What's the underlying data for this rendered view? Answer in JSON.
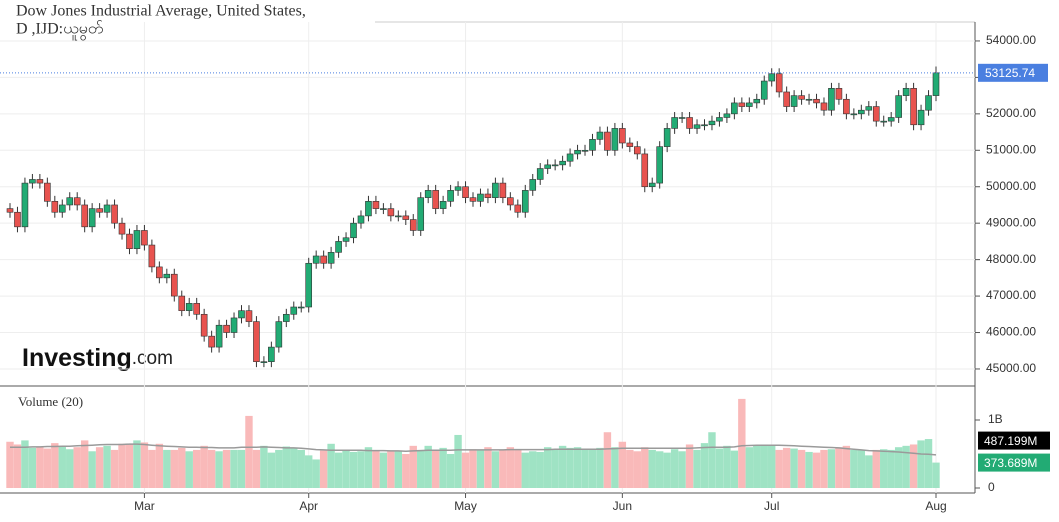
{
  "chart_data": {
    "type": "candlestick",
    "title": "Dow Jones Industrial Average, United States,",
    "subtitle": "D ,IJD:ယူမွတ်",
    "logo": {
      "brand": "Investing",
      "suffix": ".com"
    },
    "up_color": "#22ab74",
    "down_color": "#e8534f",
    "last_price_color": "#4a7fe0",
    "grid": true,
    "categories": [
      null,
      null,
      null,
      null,
      null,
      null,
      null,
      null,
      null,
      null,
      null,
      null,
      null,
      null,
      null,
      null,
      null,
      null,
      "Mar",
      null,
      null,
      null,
      null,
      null,
      null,
      null,
      null,
      null,
      null,
      null,
      null,
      null,
      null,
      null,
      null,
      null,
      null,
      null,
      null,
      null,
      "Apr",
      null,
      null,
      null,
      null,
      null,
      null,
      null,
      null,
      null,
      null,
      null,
      null,
      null,
      null,
      null,
      null,
      null,
      null,
      null,
      null,
      "May",
      null,
      null,
      null,
      null,
      null,
      null,
      null,
      null,
      null,
      null,
      null,
      null,
      null,
      null,
      null,
      null,
      null,
      null,
      null,
      null,
      "Jun",
      null,
      null,
      null,
      null,
      null,
      null,
      null,
      null,
      null,
      null,
      null,
      null,
      null,
      null,
      null,
      null,
      null,
      null,
      null,
      "Jul",
      null,
      null,
      null,
      null,
      null,
      null,
      null,
      null,
      null,
      null,
      null,
      null,
      null,
      null,
      null,
      null,
      null,
      null,
      null,
      null,
      null,
      "Aug"
    ],
    "open": [
      49400,
      49300,
      48900,
      50100,
      50200,
      50100,
      49600,
      49300,
      49500,
      49700,
      49500,
      48900,
      49400,
      49300,
      49500,
      49000,
      48700,
      48300,
      48800,
      48400,
      47800,
      47500,
      47600,
      47000,
      46600,
      46800,
      46500,
      45900,
      45600,
      46200,
      46000,
      46400,
      46600,
      46300,
      45200,
      45200,
      45600,
      46300,
      46500,
      46700,
      46700,
      47900,
      48100,
      47900,
      48200,
      48500,
      48600,
      49000,
      49200,
      49600,
      49400,
      49400,
      49200,
      49200,
      49100,
      48800,
      49700,
      49900,
      49400,
      49600,
      49900,
      50000,
      49700,
      49600,
      49800,
      49700,
      50100,
      49700,
      49500,
      49300,
      49900,
      50200,
      50500,
      50600,
      50600,
      50700,
      50900,
      51000,
      51000,
      51300,
      51500,
      51000,
      51600,
      51200,
      51100,
      50900,
      50000,
      50100,
      51100,
      51600,
      51900,
      51900,
      51600,
      51700,
      51700,
      51800,
      51900,
      52000,
      52300,
      52200,
      52300,
      52400,
      52900,
      53100,
      52600,
      52200,
      52500,
      52400,
      52400,
      52300,
      52100,
      52700,
      52400,
      52000,
      52000,
      52100,
      52200,
      51800,
      51800,
      51900,
      52500,
      52700,
      51700,
      52100,
      52500
    ],
    "high": [
      49550,
      49450,
      50250,
      50350,
      50350,
      50250,
      49750,
      49650,
      49850,
      49850,
      49650,
      49550,
      49550,
      49650,
      49650,
      49150,
      48850,
      48950,
      48950,
      48550,
      47950,
      47750,
      47750,
      47150,
      46950,
      46950,
      46650,
      46050,
      46350,
      46350,
      46550,
      46750,
      46750,
      46450,
      45350,
      45750,
      46450,
      46650,
      46850,
      46850,
      48050,
      48250,
      48250,
      48350,
      48650,
      48750,
      49150,
      49350,
      49750,
      49750,
      49550,
      49550,
      49350,
      49350,
      49250,
      49850,
      50050,
      50050,
      49750,
      50050,
      50150,
      50150,
      49850,
      49950,
      49950,
      50250,
      50250,
      49850,
      49650,
      50050,
      50350,
      50650,
      50750,
      50750,
      50850,
      51050,
      51150,
      51150,
      51450,
      51650,
      51650,
      51750,
      51750,
      51350,
      51250,
      51050,
      50250,
      51250,
      51750,
      52050,
      52050,
      52050,
      51850,
      51850,
      51950,
      52050,
      52150,
      52450,
      52450,
      52450,
      52550,
      53050,
      53250,
      53250,
      52750,
      52650,
      52650,
      52550,
      52550,
      52450,
      52850,
      52850,
      52550,
      52150,
      52250,
      52350,
      52350,
      51950,
      52050,
      52650,
      52850,
      52850,
      52250,
      52650,
      53300
    ],
    "low": [
      49150,
      48750,
      48750,
      49950,
      49950,
      49450,
      49150,
      49150,
      49350,
      49350,
      48750,
      48750,
      49150,
      49150,
      48850,
      48550,
      48150,
      48150,
      48250,
      47650,
      47350,
      47350,
      46850,
      46450,
      46450,
      46350,
      45750,
      45450,
      45450,
      45850,
      45850,
      46250,
      46150,
      45050,
      45050,
      45050,
      45450,
      46150,
      46350,
      46550,
      46550,
      47750,
      47750,
      47750,
      48050,
      48350,
      48450,
      48850,
      49050,
      49250,
      49250,
      49050,
      49050,
      48950,
      48650,
      48650,
      49550,
      49250,
      49250,
      49450,
      49750,
      49550,
      49450,
      49450,
      49550,
      49550,
      49550,
      49350,
      49150,
      49150,
      49750,
      50050,
      50350,
      50450,
      50450,
      50550,
      50750,
      50850,
      50850,
      51150,
      50850,
      50850,
      51050,
      50950,
      50750,
      49850,
      49850,
      49950,
      50950,
      51450,
      51750,
      51450,
      51450,
      51550,
      51550,
      51650,
      51750,
      51850,
      52050,
      52050,
      52150,
      52250,
      52750,
      52450,
      52050,
      52050,
      52250,
      52250,
      52150,
      51950,
      51950,
      52250,
      51850,
      51850,
      51850,
      51950,
      51650,
      51650,
      51650,
      51750,
      52350,
      51550,
      51550,
      51950,
      52350
    ],
    "close": [
      49300,
      48900,
      50100,
      50200,
      50100,
      49600,
      49300,
      49500,
      49700,
      49500,
      48900,
      49400,
      49300,
      49500,
      49000,
      48700,
      48300,
      48800,
      48400,
      47800,
      47500,
      47600,
      47000,
      46600,
      46800,
      46500,
      45900,
      45600,
      46200,
      46000,
      46400,
      46600,
      46300,
      45200,
      45200,
      45600,
      46300,
      46500,
      46700,
      46700,
      47900,
      48100,
      47900,
      48200,
      48500,
      48600,
      49000,
      49200,
      49600,
      49400,
      49400,
      49200,
      49200,
      49100,
      48800,
      49700,
      49900,
      49400,
      49600,
      49900,
      50000,
      49700,
      49600,
      49800,
      49700,
      50100,
      49700,
      49500,
      49300,
      49900,
      50200,
      50500,
      50600,
      50600,
      50700,
      50900,
      51000,
      51000,
      51300,
      51500,
      51000,
      51600,
      51200,
      51100,
      50900,
      50000,
      50100,
      51100,
      51600,
      51900,
      51900,
      51600,
      51700,
      51700,
      51800,
      51900,
      52000,
      52300,
      52200,
      52300,
      52400,
      52900,
      53100,
      52600,
      52200,
      52500,
      52400,
      52400,
      52300,
      52100,
      52700,
      52400,
      52000,
      52000,
      52100,
      52200,
      51800,
      51800,
      51900,
      52500,
      52700,
      51700,
      52100,
      52500,
      53125.74
    ],
    "ylim": [
      44560,
      54520
    ],
    "yticks": [
      {
        "value": 45000,
        "label": "45000.00"
      },
      {
        "value": 46000,
        "label": "46000.00"
      },
      {
        "value": 47000,
        "label": "47000.00"
      },
      {
        "value": 48000,
        "label": "48000.00"
      },
      {
        "value": 49000,
        "label": "49000.00"
      },
      {
        "value": 50000,
        "label": "50000.00"
      },
      {
        "value": 51000,
        "label": "51000.00"
      },
      {
        "value": 52000,
        "label": "52000.00"
      },
      {
        "value": 53000,
        "label": "53000.00"
      },
      {
        "value": 54000,
        "label": "54000.00"
      }
    ],
    "volume": {
      "title": "Volume (20)",
      "up_color": "#9fe3c4",
      "down_color": "#f9b9b9",
      "ma_color": "#9a9a9a",
      "ylim": [
        0,
        1441000000
      ],
      "yticks": [
        0,
        {
          "value": 1000000000,
          "label": "1B"
        }
      ],
      "values": [
        680000000,
        640000000,
        700000000,
        590000000,
        610000000,
        580000000,
        660000000,
        620000000,
        570000000,
        600000000,
        700000000,
        540000000,
        600000000,
        620000000,
        560000000,
        650000000,
        640000000,
        700000000,
        670000000,
        560000000,
        650000000,
        560000000,
        560000000,
        590000000,
        540000000,
        560000000,
        620000000,
        560000000,
        540000000,
        560000000,
        560000000,
        560000000,
        1060000000,
        560000000,
        620000000,
        520000000,
        560000000,
        610000000,
        590000000,
        560000000,
        480000000,
        420000000,
        550000000,
        650000000,
        520000000,
        550000000,
        530000000,
        540000000,
        600000000,
        550000000,
        520000000,
        540000000,
        540000000,
        500000000,
        620000000,
        560000000,
        620000000,
        560000000,
        590000000,
        500000000,
        780000000,
        520000000,
        570000000,
        560000000,
        600000000,
        540000000,
        560000000,
        600000000,
        560000000,
        520000000,
        540000000,
        530000000,
        600000000,
        560000000,
        620000000,
        590000000,
        600000000,
        560000000,
        560000000,
        590000000,
        820000000,
        600000000,
        680000000,
        560000000,
        540000000,
        600000000,
        560000000,
        540000000,
        520000000,
        570000000,
        540000000,
        640000000,
        560000000,
        660000000,
        820000000,
        580000000,
        620000000,
        550000000,
        1310000000,
        600000000,
        620000000,
        640000000,
        620000000,
        560000000,
        590000000,
        580000000,
        560000000,
        530000000,
        520000000,
        560000000,
        570000000,
        600000000,
        620000000,
        560000000,
        560000000,
        480000000,
        560000000,
        570000000,
        560000000,
        600000000,
        620000000,
        640000000,
        700000000,
        720000000,
        373689000
      ],
      "value_labels": {
        "124": "373.689M"
      },
      "ma": [
        600000000,
        600000000,
        600000000,
        605000000,
        605000000,
        610000000,
        610000000,
        615000000,
        615000000,
        620000000,
        625000000,
        630000000,
        635000000,
        640000000,
        640000000,
        640000000,
        645000000,
        645000000,
        640000000,
        630000000,
        620000000,
        615000000,
        610000000,
        605000000,
        600000000,
        600000000,
        595000000,
        595000000,
        590000000,
        590000000,
        590000000,
        600000000,
        600000000,
        600000000,
        605000000,
        600000000,
        595000000,
        590000000,
        590000000,
        585000000,
        575000000,
        565000000,
        560000000,
        555000000,
        555000000,
        555000000,
        555000000,
        555000000,
        550000000,
        550000000,
        550000000,
        545000000,
        545000000,
        540000000,
        545000000,
        550000000,
        555000000,
        555000000,
        555000000,
        555000000,
        560000000,
        560000000,
        560000000,
        560000000,
        560000000,
        560000000,
        560000000,
        565000000,
        565000000,
        565000000,
        565000000,
        565000000,
        565000000,
        570000000,
        570000000,
        570000000,
        570000000,
        570000000,
        570000000,
        570000000,
        575000000,
        580000000,
        585000000,
        585000000,
        585000000,
        585000000,
        585000000,
        585000000,
        585000000,
        585000000,
        585000000,
        585000000,
        590000000,
        595000000,
        600000000,
        600000000,
        600000000,
        605000000,
        620000000,
        625000000,
        630000000,
        630000000,
        630000000,
        630000000,
        625000000,
        620000000,
        615000000,
        610000000,
        605000000,
        600000000,
        595000000,
        590000000,
        580000000,
        570000000,
        560000000,
        550000000,
        545000000,
        540000000,
        535000000,
        530000000,
        520000000,
        510000000,
        500000000,
        495000000,
        487199000
      ],
      "ma_labels": {
        "124": "487.199M"
      }
    }
  }
}
